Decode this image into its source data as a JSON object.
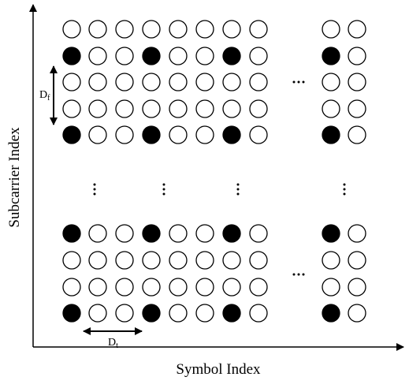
{
  "axes": {
    "y_label": "Subcarrier Index",
    "x_label": "Symbol Index"
  },
  "annotations": {
    "frequency_spacing": {
      "base": "D",
      "subscript": "f"
    },
    "time_spacing": {
      "base": "D",
      "subscript": "t"
    }
  }
}
